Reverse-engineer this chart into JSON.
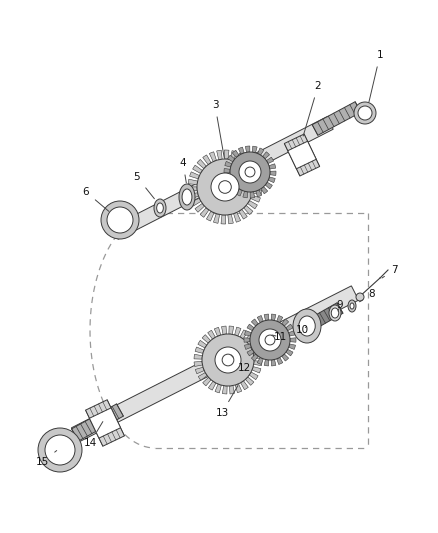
{
  "bg_color": "#ffffff",
  "line_color": "#3a3a3a",
  "gear_color": "#c8c8c8",
  "gear_dark": "#a0a0a0",
  "bearing_color": "#c0c0c0",
  "shaft_color": "#e0e0e0",
  "shaft_dark": "#b0b0b0",
  "dashed_color": "#999999",
  "label_color": "#111111",
  "figsize": [
    4.38,
    5.33
  ],
  "dpi": 100
}
